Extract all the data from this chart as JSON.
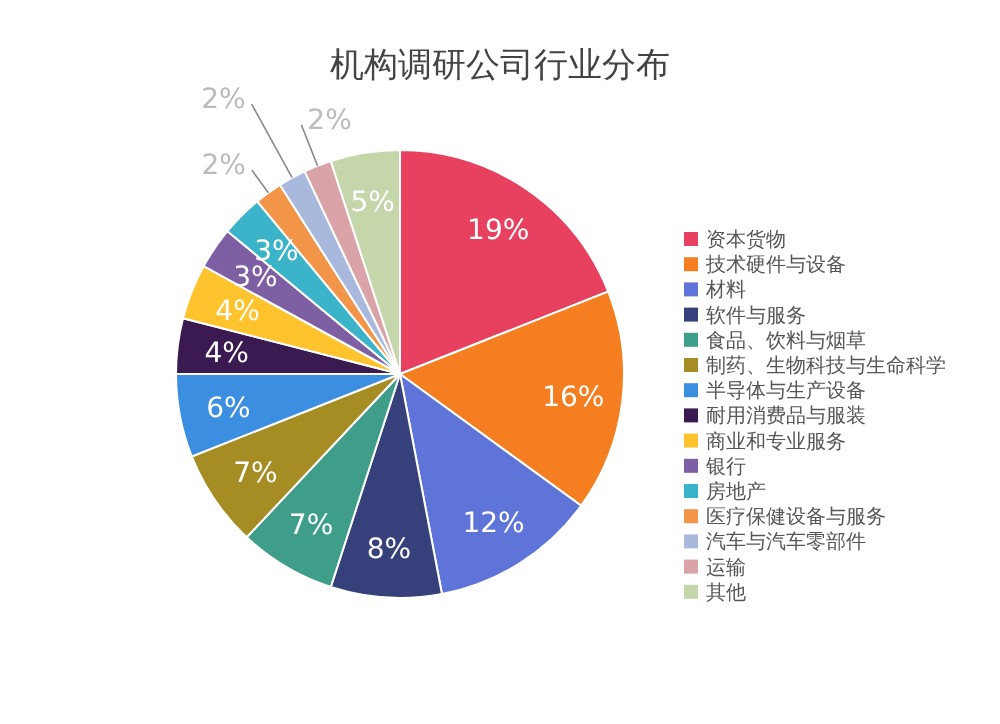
{
  "chart_data": {
    "type": "pie",
    "title": "机构调研公司行业分布",
    "categories": [
      "资本货物",
      "技术硬件与设备",
      "材料",
      "软件与服务",
      "食品、饮料与烟草",
      "制药、生物科技与生命科学",
      "半导体与生产设备",
      "耐用消费品与服装",
      "商业和专业服务",
      "银行",
      "房地产",
      "医疗保健设备与服务",
      "汽车与汽车零部件",
      "运输",
      "其他"
    ],
    "values": [
      19,
      16,
      12,
      8,
      7,
      7,
      6,
      4,
      4,
      3,
      3,
      2,
      2,
      2,
      5
    ],
    "colors": [
      "#e8415f",
      "#f57f20",
      "#5f74d8",
      "#36407a",
      "#3f9e8a",
      "#a58c23",
      "#3b8ee0",
      "#3b1a52",
      "#fec32d",
      "#7e5fa3",
      "#3bb3c9",
      "#f39548",
      "#a9b8dd",
      "#d9a3a8",
      "#c6d6ab"
    ],
    "value_labels": [
      "19%",
      "16%",
      "12%",
      "8%",
      "7%",
      "7%",
      "6%",
      "4%",
      "4%",
      "3%",
      "3%",
      "2%",
      "2%",
      "2%",
      "5%"
    ],
    "legend": "right"
  }
}
